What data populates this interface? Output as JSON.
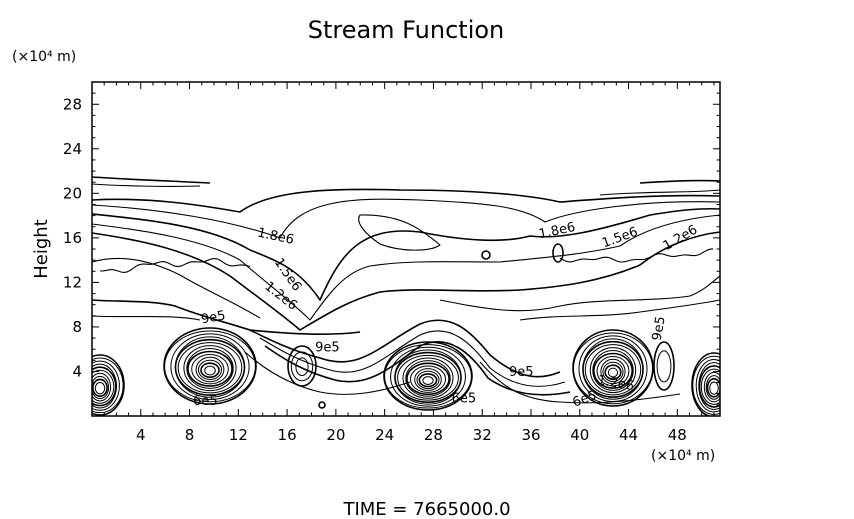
{
  "chart_data": {
    "type": "contour",
    "title": "Stream Function",
    "ylabel": "Height",
    "x_unit_label": "(×10⁴ m)",
    "y_unit_label": "(×10⁴ m)",
    "xlim": [
      0,
      51.5
    ],
    "ylim": [
      0,
      30
    ],
    "x_ticks": [
      4,
      8,
      12,
      16,
      20,
      24,
      28,
      32,
      36,
      40,
      44,
      48
    ],
    "y_ticks": [
      4,
      8,
      12,
      16,
      20,
      24,
      28
    ],
    "grid": false,
    "contour_labels": [
      {
        "text": "1.8e6",
        "x": 15.0,
        "y": 15.8,
        "angle": 12
      },
      {
        "text": "1.8e6",
        "x": 38.2,
        "y": 16.3,
        "angle": -12
      },
      {
        "text": "1.5e6",
        "x": 43.4,
        "y": 15.7,
        "angle": -20
      },
      {
        "text": "1.2e6",
        "x": 48.4,
        "y": 15.7,
        "angle": -30
      },
      {
        "text": "1.5e6",
        "x": 15.8,
        "y": 12.5,
        "angle": 55
      },
      {
        "text": "1.2e6",
        "x": 15.3,
        "y": 10.5,
        "angle": 38
      },
      {
        "text": "9e5",
        "x": 10.0,
        "y": 8.5,
        "angle": -10
      },
      {
        "text": "9e5",
        "x": 46.8,
        "y": 7.8,
        "angle": -80
      },
      {
        "text": "9e5",
        "x": 19.3,
        "y": 5.8,
        "angle": 0
      },
      {
        "text": "9e5",
        "x": 35.2,
        "y": 3.6,
        "angle": 0
      },
      {
        "text": "1.2e6",
        "x": 42.9,
        "y": 2.6,
        "angle": 10
      },
      {
        "text": "6e5",
        "x": 30.5,
        "y": 1.2,
        "angle": 0
      },
      {
        "text": "6e5",
        "x": 9.3,
        "y": 1.0,
        "angle": 0
      },
      {
        "text": "6e5",
        "x": 40.5,
        "y": 1.2,
        "angle": -20
      }
    ]
  },
  "footer": {
    "time_label": "TIME  =  7665000.0"
  }
}
